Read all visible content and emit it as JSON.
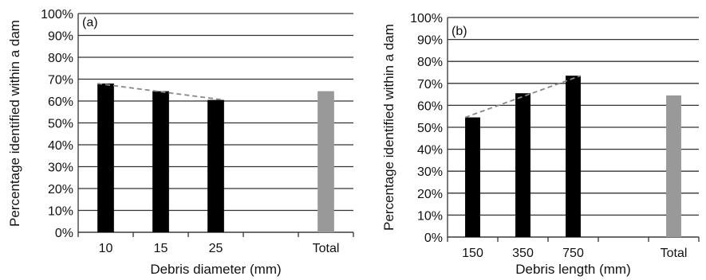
{
  "chart_data": [
    {
      "type": "bar",
      "panel_label": "(a)",
      "categories": [
        "10",
        "15",
        "25",
        "",
        "Total"
      ],
      "values": [
        68,
        64.5,
        60.5,
        null,
        64.5
      ],
      "bar_colors": [
        "#000000",
        "#000000",
        "#000000",
        null,
        "#999999"
      ],
      "trend_line": [
        68,
        64.5,
        60.5
      ],
      "xlabel": "Debris diameter (mm)",
      "ylabel": "Percentage identified within a dam",
      "ylim": [
        0,
        100
      ],
      "yticks": [
        "0%",
        "10%",
        "20%",
        "30%",
        "40%",
        "50%",
        "60%",
        "70%",
        "80%",
        "90%",
        "100%"
      ],
      "grid": true
    },
    {
      "type": "bar",
      "panel_label": "(b)",
      "categories": [
        "150",
        "350",
        "750",
        "",
        "Total"
      ],
      "values": [
        54.5,
        65.5,
        73.5,
        null,
        64.5
      ],
      "bar_colors": [
        "#000000",
        "#000000",
        "#000000",
        null,
        "#999999"
      ],
      "trend_line": [
        54.5,
        65.5,
        73.5
      ],
      "xlabel": "Debris length (mm)",
      "ylabel": "Percentage identified within a dam",
      "ylim": [
        0,
        100
      ],
      "yticks": [
        "0%",
        "10%",
        "20%",
        "30%",
        "40%",
        "50%",
        "60%",
        "70%",
        "80%",
        "90%",
        "100%"
      ],
      "grid": true
    }
  ]
}
